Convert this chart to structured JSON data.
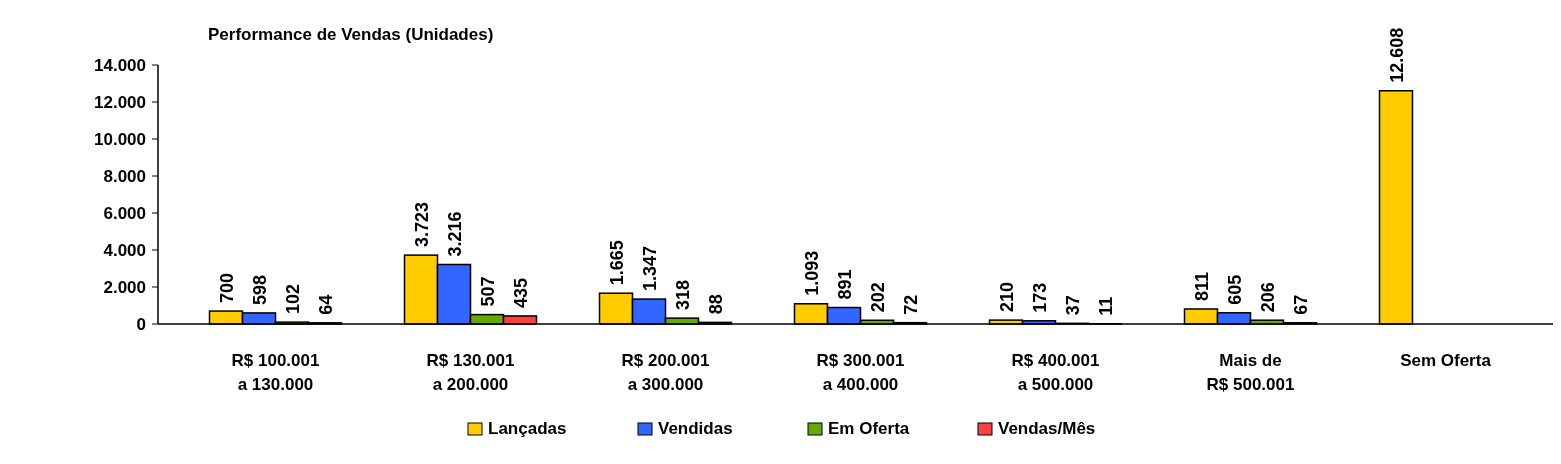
{
  "chart_data": {
    "type": "bar",
    "title": "Performance de Vendas (Unidades)",
    "categories": [
      "R$ 100.001\na 130.000",
      "R$ 130.001\na 200.000",
      "R$ 200.001\na 300.000",
      "R$ 300.001\na 400.000",
      "R$ 400.001\na 500.000",
      "Mais de\nR$ 500.001",
      "Sem Oferta"
    ],
    "series": [
      {
        "name": "Lançadas",
        "color": "#ffcc00",
        "values": [
          700,
          3723,
          1665,
          1093,
          210,
          811,
          12608
        ],
        "value_labels": [
          "700",
          "3.723",
          "1.665",
          "1.093",
          "210",
          "811",
          "12.608"
        ]
      },
      {
        "name": "Vendidas",
        "color": "#3366ff",
        "values": [
          598,
          3216,
          1347,
          891,
          173,
          605,
          null
        ],
        "value_labels": [
          "598",
          "3.216",
          "1.347",
          "891",
          "173",
          "605",
          null
        ]
      },
      {
        "name": "Em Oferta",
        "color": "#66aa00",
        "values": [
          102,
          507,
          318,
          202,
          37,
          206,
          null
        ],
        "value_labels": [
          "102",
          "507",
          "318",
          "202",
          "37",
          "206",
          null
        ]
      },
      {
        "name": "Vendas/Mês",
        "color": "#ff4040",
        "values": [
          64,
          435,
          88,
          72,
          11,
          67,
          null
        ],
        "value_labels": [
          "64",
          "435",
          "88",
          "72",
          "11",
          "67",
          null
        ]
      }
    ],
    "ylim": [
      0,
      14000
    ],
    "yticks": [
      {
        "value": 0,
        "label": "0"
      },
      {
        "value": 2000,
        "label": "2.000"
      },
      {
        "value": 4000,
        "label": "4.000"
      },
      {
        "value": 6000,
        "label": "6.000"
      },
      {
        "value": 8000,
        "label": "8.000"
      },
      {
        "value": 10000,
        "label": "10.000"
      },
      {
        "value": 12000,
        "label": "12.000"
      },
      {
        "value": 14000,
        "label": "14.000"
      }
    ],
    "grid": false,
    "legend": "bottom"
  }
}
